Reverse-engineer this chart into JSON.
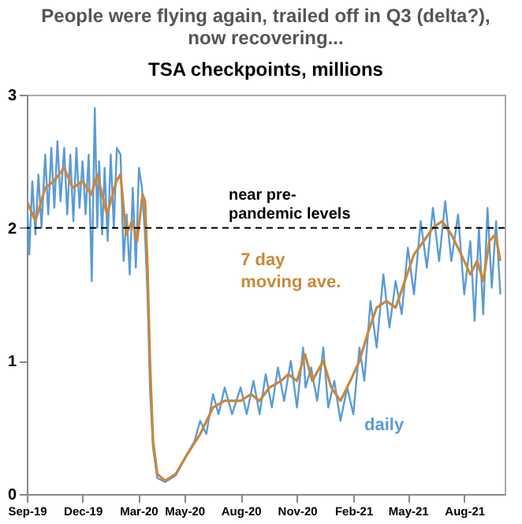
{
  "chart_data": {
    "type": "line",
    "title": [
      "People were flying again, trailed off in Q3 (delta?),",
      "now recovering..."
    ],
    "subtitle": "TSA checkpoints, millions",
    "xlim": [
      "2019-09-01",
      "2021-10-20"
    ],
    "xticks": [
      {
        "value": "2019-09-01",
        "label": "Sep-19"
      },
      {
        "value": "2019-12-01",
        "label": "Dec-19"
      },
      {
        "value": "2020-03-01",
        "label": "Mar-20"
      },
      {
        "value": "2020-05-15",
        "label": "May-20"
      },
      {
        "value": "2020-08-15",
        "label": "Aug-20"
      },
      {
        "value": "2020-11-15",
        "label": "Nov-20"
      },
      {
        "value": "2021-02-15",
        "label": "Feb-21"
      },
      {
        "value": "2021-05-15",
        "label": "May-21"
      },
      {
        "value": "2021-08-15",
        "label": "Aug-21"
      }
    ],
    "ylim": [
      0,
      3
    ],
    "yticks": [
      0,
      1,
      2,
      3
    ],
    "grid": false,
    "ref_lines": [
      {
        "axis": "y",
        "value": 2,
        "label": "near pre-pandemic levels",
        "color": "#000000",
        "line_style": "dashed"
      }
    ],
    "series": [
      {
        "name": "daily",
        "color": "#5b9bd5",
        "x": [
          "2019-09-01",
          "2019-09-05",
          "2019-09-10",
          "2019-09-15",
          "2019-09-20",
          "2019-09-25",
          "2019-10-01",
          "2019-10-06",
          "2019-10-11",
          "2019-10-16",
          "2019-10-21",
          "2019-10-26",
          "2019-11-01",
          "2019-11-06",
          "2019-11-11",
          "2019-11-16",
          "2019-11-21",
          "2019-11-26",
          "2019-12-01",
          "2019-12-06",
          "2019-12-11",
          "2019-12-16",
          "2019-12-21",
          "2019-12-25",
          "2019-12-28",
          "2020-01-02",
          "2020-01-06",
          "2020-01-11",
          "2020-01-16",
          "2020-01-21",
          "2020-01-26",
          "2020-02-01",
          "2020-02-06",
          "2020-02-11",
          "2020-02-16",
          "2020-02-21",
          "2020-02-26",
          "2020-03-02",
          "2020-03-07",
          "2020-03-12",
          "2020-03-16",
          "2020-03-20",
          "2020-03-25",
          "2020-04-01",
          "2020-04-14",
          "2020-05-01",
          "2020-05-20",
          "2020-06-01",
          "2020-06-10",
          "2020-06-20",
          "2020-07-01",
          "2020-07-10",
          "2020-07-20",
          "2020-08-01",
          "2020-08-15",
          "2020-08-25",
          "2020-09-05",
          "2020-09-15",
          "2020-09-25",
          "2020-10-05",
          "2020-10-15",
          "2020-10-25",
          "2020-11-05",
          "2020-11-15",
          "2020-11-25",
          "2020-11-29",
          "2020-12-08",
          "2020-12-18",
          "2020-12-28",
          "2021-01-05",
          "2021-01-15",
          "2021-01-25",
          "2021-02-05",
          "2021-02-15",
          "2021-02-25",
          "2021-03-05",
          "2021-03-15",
          "2021-03-25",
          "2021-04-05",
          "2021-04-15",
          "2021-04-25",
          "2021-05-05",
          "2021-05-15",
          "2021-05-25",
          "2021-06-05",
          "2021-06-15",
          "2021-06-25",
          "2021-07-05",
          "2021-07-15",
          "2021-07-25",
          "2021-08-05",
          "2021-08-15",
          "2021-08-25",
          "2021-09-01",
          "2021-09-08",
          "2021-09-15",
          "2021-09-22",
          "2021-09-29",
          "2021-10-06",
          "2021-10-13"
        ],
        "values": [
          2.25,
          1.8,
          2.35,
          1.95,
          2.4,
          2.0,
          2.55,
          2.1,
          2.6,
          2.15,
          2.65,
          2.2,
          2.6,
          2.1,
          2.55,
          2.05,
          2.6,
          2.15,
          2.5,
          2.1,
          2.55,
          1.6,
          2.9,
          2.0,
          2.5,
          1.95,
          2.45,
          1.9,
          2.55,
          2.0,
          2.6,
          2.55,
          1.75,
          2.1,
          1.65,
          2.3,
          1.7,
          2.45,
          2.3,
          1.95,
          1.5,
          0.8,
          0.35,
          0.12,
          0.09,
          0.14,
          0.3,
          0.4,
          0.55,
          0.45,
          0.75,
          0.6,
          0.8,
          0.6,
          0.8,
          0.6,
          0.85,
          0.6,
          0.9,
          0.65,
          0.95,
          0.7,
          1.0,
          0.65,
          1.1,
          0.8,
          0.95,
          0.7,
          1.1,
          0.65,
          0.85,
          0.55,
          0.8,
          0.6,
          1.1,
          0.85,
          1.45,
          1.1,
          1.65,
          1.25,
          1.6,
          1.35,
          1.85,
          1.5,
          2.05,
          1.7,
          2.15,
          1.75,
          2.2,
          1.75,
          2.1,
          1.5,
          1.9,
          1.3,
          2.0,
          1.35,
          2.15,
          1.55,
          2.05,
          1.5
        ]
      },
      {
        "name": "7 day moving ave.",
        "color": "#c9883a",
        "x": [
          "2019-09-01",
          "2019-09-15",
          "2019-10-01",
          "2019-10-15",
          "2019-11-01",
          "2019-11-15",
          "2019-12-01",
          "2019-12-15",
          "2019-12-25",
          "2020-01-10",
          "2020-01-25",
          "2020-02-01",
          "2020-02-10",
          "2020-02-20",
          "2020-02-28",
          "2020-03-08",
          "2020-03-12",
          "2020-03-16",
          "2020-03-20",
          "2020-03-25",
          "2020-04-01",
          "2020-04-14",
          "2020-05-01",
          "2020-05-20",
          "2020-06-10",
          "2020-07-01",
          "2020-07-20",
          "2020-08-15",
          "2020-09-01",
          "2020-09-15",
          "2020-10-01",
          "2020-10-20",
          "2020-11-01",
          "2020-11-15",
          "2020-11-28",
          "2020-12-10",
          "2020-12-28",
          "2021-01-10",
          "2021-01-25",
          "2021-02-10",
          "2021-02-25",
          "2021-03-10",
          "2021-03-25",
          "2021-04-10",
          "2021-04-25",
          "2021-05-10",
          "2021-05-25",
          "2021-06-10",
          "2021-06-25",
          "2021-07-10",
          "2021-07-25",
          "2021-08-10",
          "2021-08-25",
          "2021-09-05",
          "2021-09-15",
          "2021-09-25",
          "2021-10-05",
          "2021-10-13"
        ],
        "values": [
          2.2,
          2.05,
          2.3,
          2.35,
          2.45,
          2.3,
          2.35,
          2.25,
          2.4,
          2.1,
          2.35,
          2.4,
          1.95,
          2.05,
          1.9,
          2.25,
          2.2,
          1.7,
          1.0,
          0.4,
          0.15,
          0.1,
          0.15,
          0.3,
          0.45,
          0.65,
          0.7,
          0.7,
          0.75,
          0.7,
          0.8,
          0.85,
          0.9,
          0.85,
          1.05,
          0.85,
          1.0,
          0.8,
          0.7,
          0.85,
          1.0,
          1.2,
          1.4,
          1.45,
          1.4,
          1.6,
          1.8,
          1.9,
          2.0,
          2.05,
          1.95,
          1.8,
          1.65,
          1.75,
          1.6,
          1.9,
          1.95,
          1.75
        ]
      }
    ]
  }
}
